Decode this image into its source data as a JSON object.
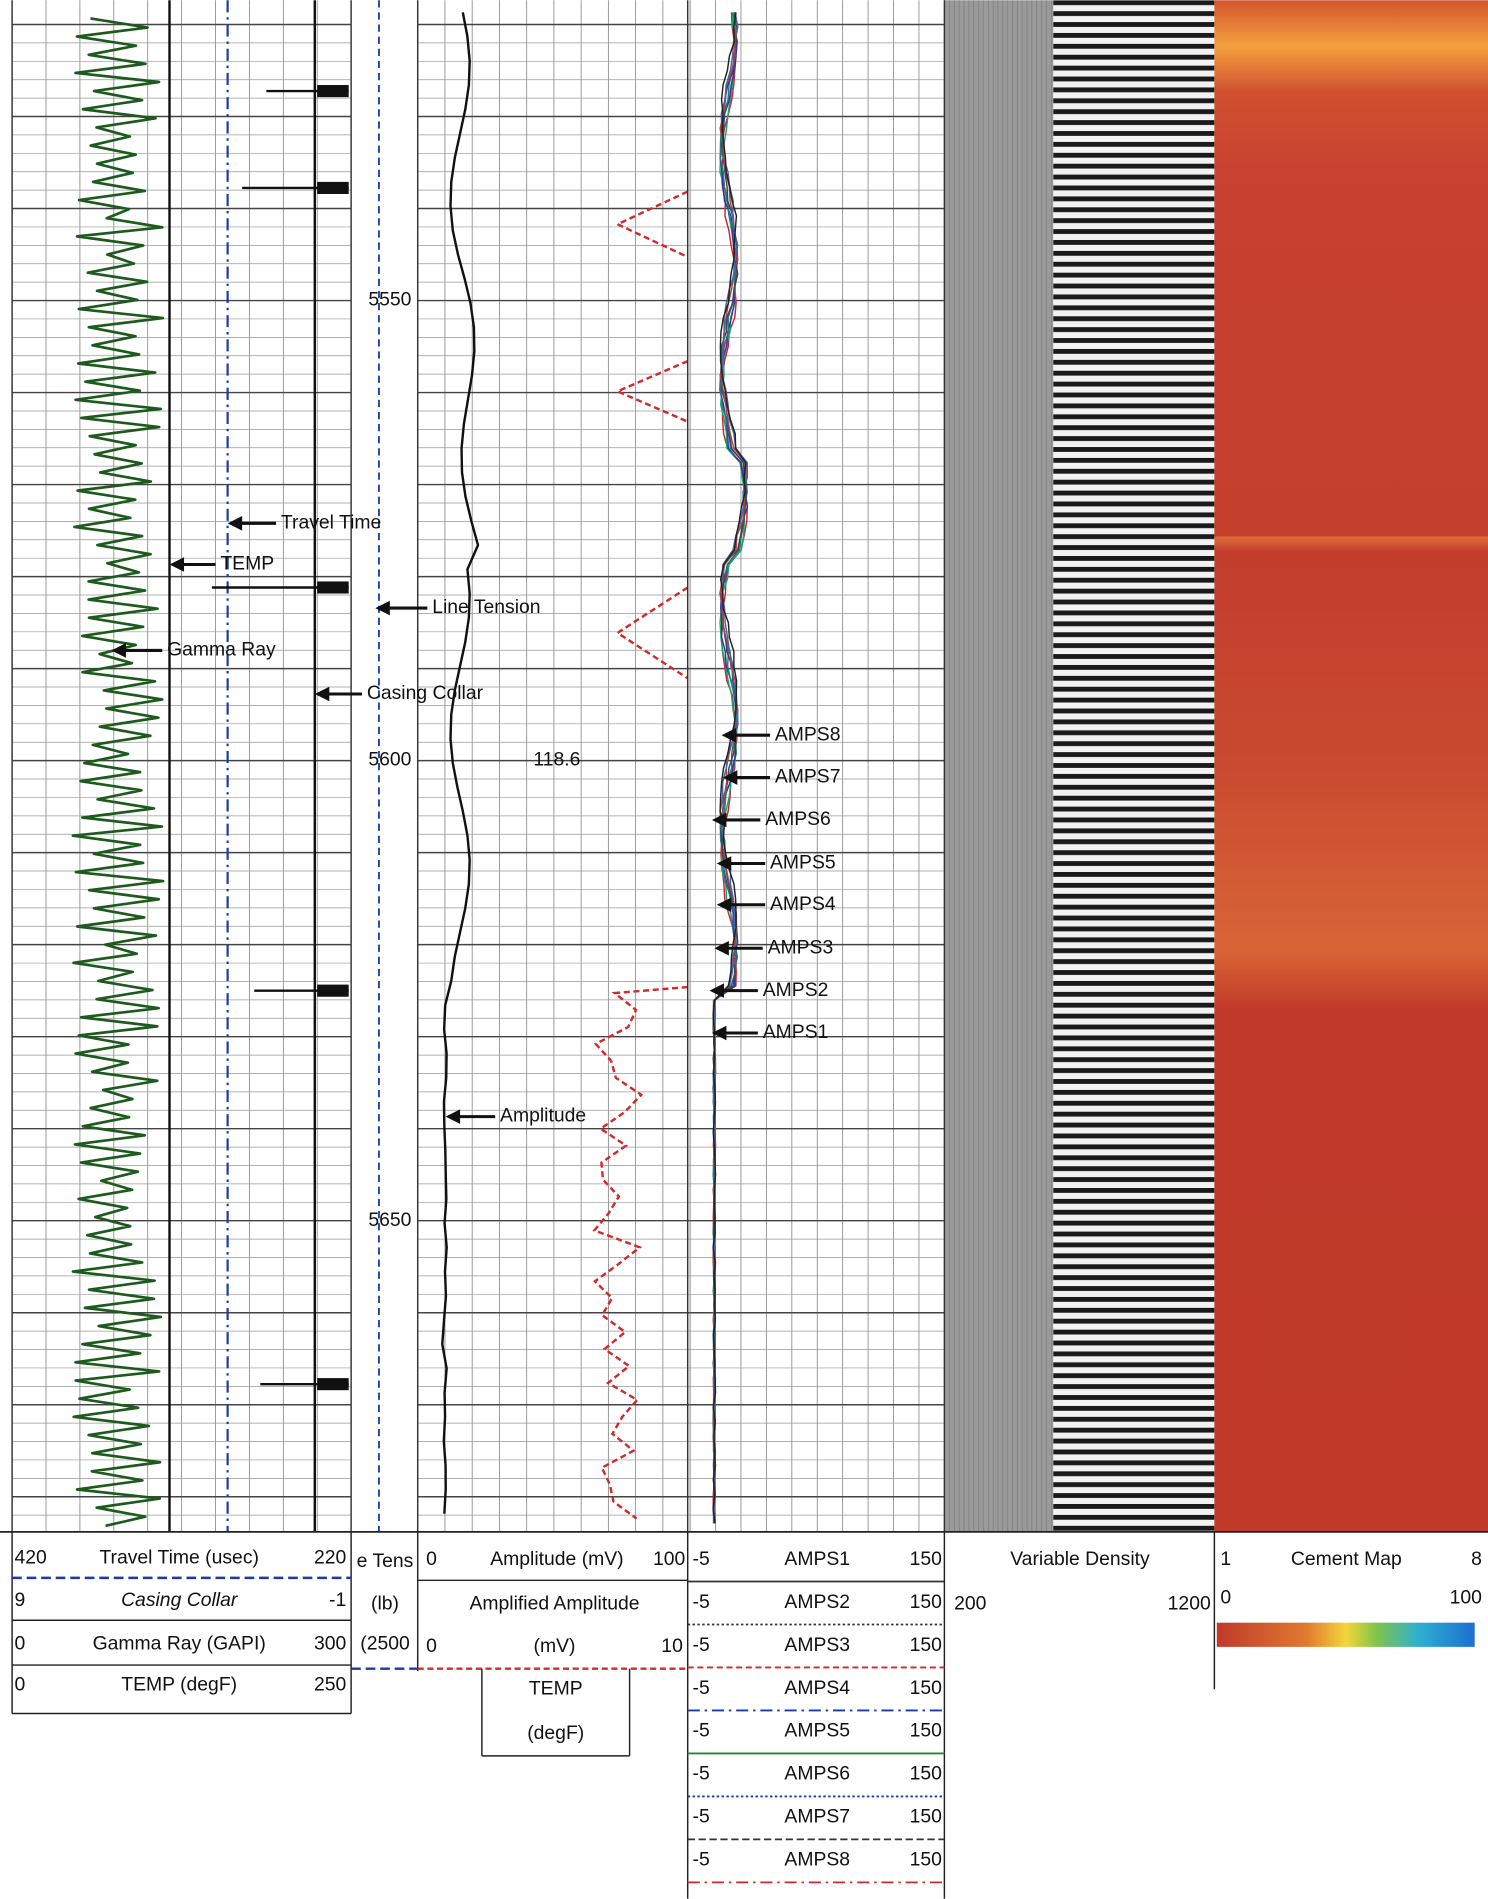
{
  "depth_labels": [
    5550,
    5600,
    5650
  ],
  "reading": "118.6",
  "annotations": {
    "travel_time": "Travel Time",
    "temp": "TEMP",
    "line_tension": "Line Tension",
    "gamma_ray": "Gamma Ray",
    "casing_collar": "Casing Collar",
    "amplitude": "Amplitude",
    "amps": [
      "AMPS8",
      "AMPS7",
      "AMPS6",
      "AMPS5",
      "AMPS4",
      "AMPS3",
      "AMPS2",
      "AMPS1"
    ]
  },
  "headers": {
    "track1": [
      {
        "left": "420",
        "name": "Travel Time (usec)",
        "right": "220"
      },
      {
        "left": "9",
        "name": "Casing Collar",
        "right": "-1"
      },
      {
        "left": "0",
        "name": "Gamma Ray (GAPI)",
        "right": "300"
      },
      {
        "left": "0",
        "name": "TEMP (degF)",
        "right": "250"
      }
    ],
    "depth": [
      "e Tens",
      "(lb)",
      "(2500"
    ],
    "track2": {
      "amplitude": {
        "left": "0",
        "name": "Amplitude (mV)",
        "right": "100"
      },
      "amplified": "Amplified Amplitude",
      "amplified_scale": {
        "left": "0",
        "name": "(mV)",
        "right": "10"
      },
      "temp": [
        "TEMP",
        "(degF)"
      ]
    },
    "track3": [
      {
        "left": "-5",
        "name": "AMPS1",
        "right": "150"
      },
      {
        "left": "-5",
        "name": "AMPS2",
        "right": "150"
      },
      {
        "left": "-5",
        "name": "AMPS3",
        "right": "150"
      },
      {
        "left": "-5",
        "name": "AMPS4",
        "right": "150"
      },
      {
        "left": "-5",
        "name": "AMPS5",
        "right": "150"
      },
      {
        "left": "-5",
        "name": "AMPS6",
        "right": "150"
      },
      {
        "left": "-5",
        "name": "AMPS7",
        "right": "150"
      },
      {
        "left": "-5",
        "name": "AMPS8",
        "right": "150"
      }
    ],
    "vdl": {
      "name": "Variable Density",
      "left": "200",
      "right": "1200"
    },
    "cement": {
      "left": "1",
      "name": "Cement Map",
      "right": "8",
      "scale_left": "0",
      "scale_right": "100"
    }
  }
}
